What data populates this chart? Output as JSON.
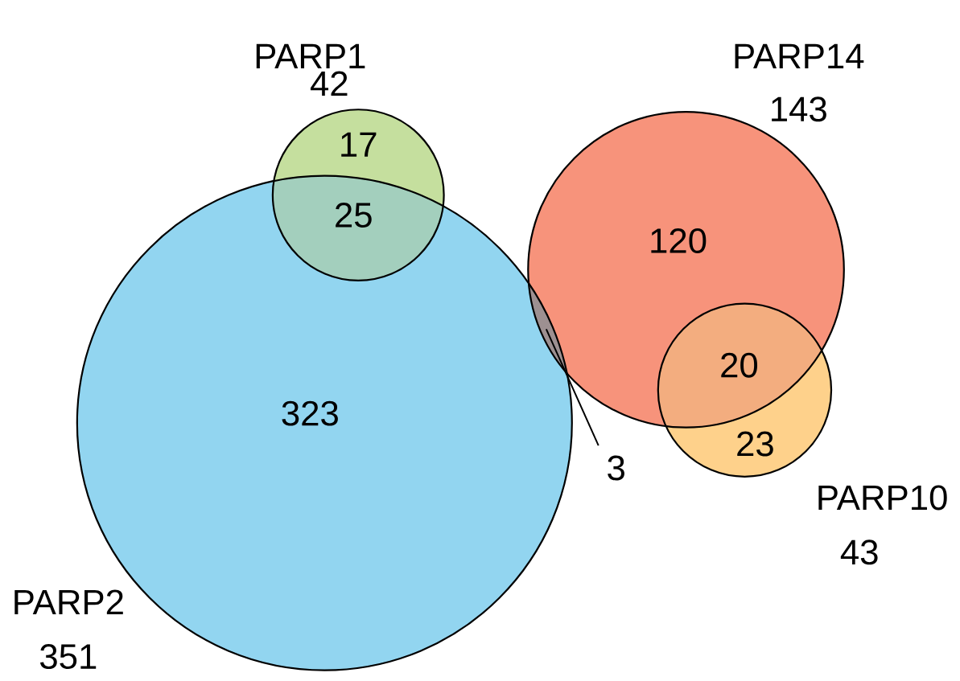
{
  "chart_data": {
    "type": "other",
    "categories": [
      "PARP1",
      "PARP2",
      "PARP14",
      "PARP10"
    ],
    "values": [
      42,
      351,
      143,
      43
    ],
    "colors": [
      "#c5df9e",
      "#92d5f0",
      "#f7937b",
      "#fed18b"
    ],
    "data_labels": true,
    "annotations": [
      "17",
      "25",
      "323",
      "120",
      "20",
      "23",
      "3"
    ]
  }
}
